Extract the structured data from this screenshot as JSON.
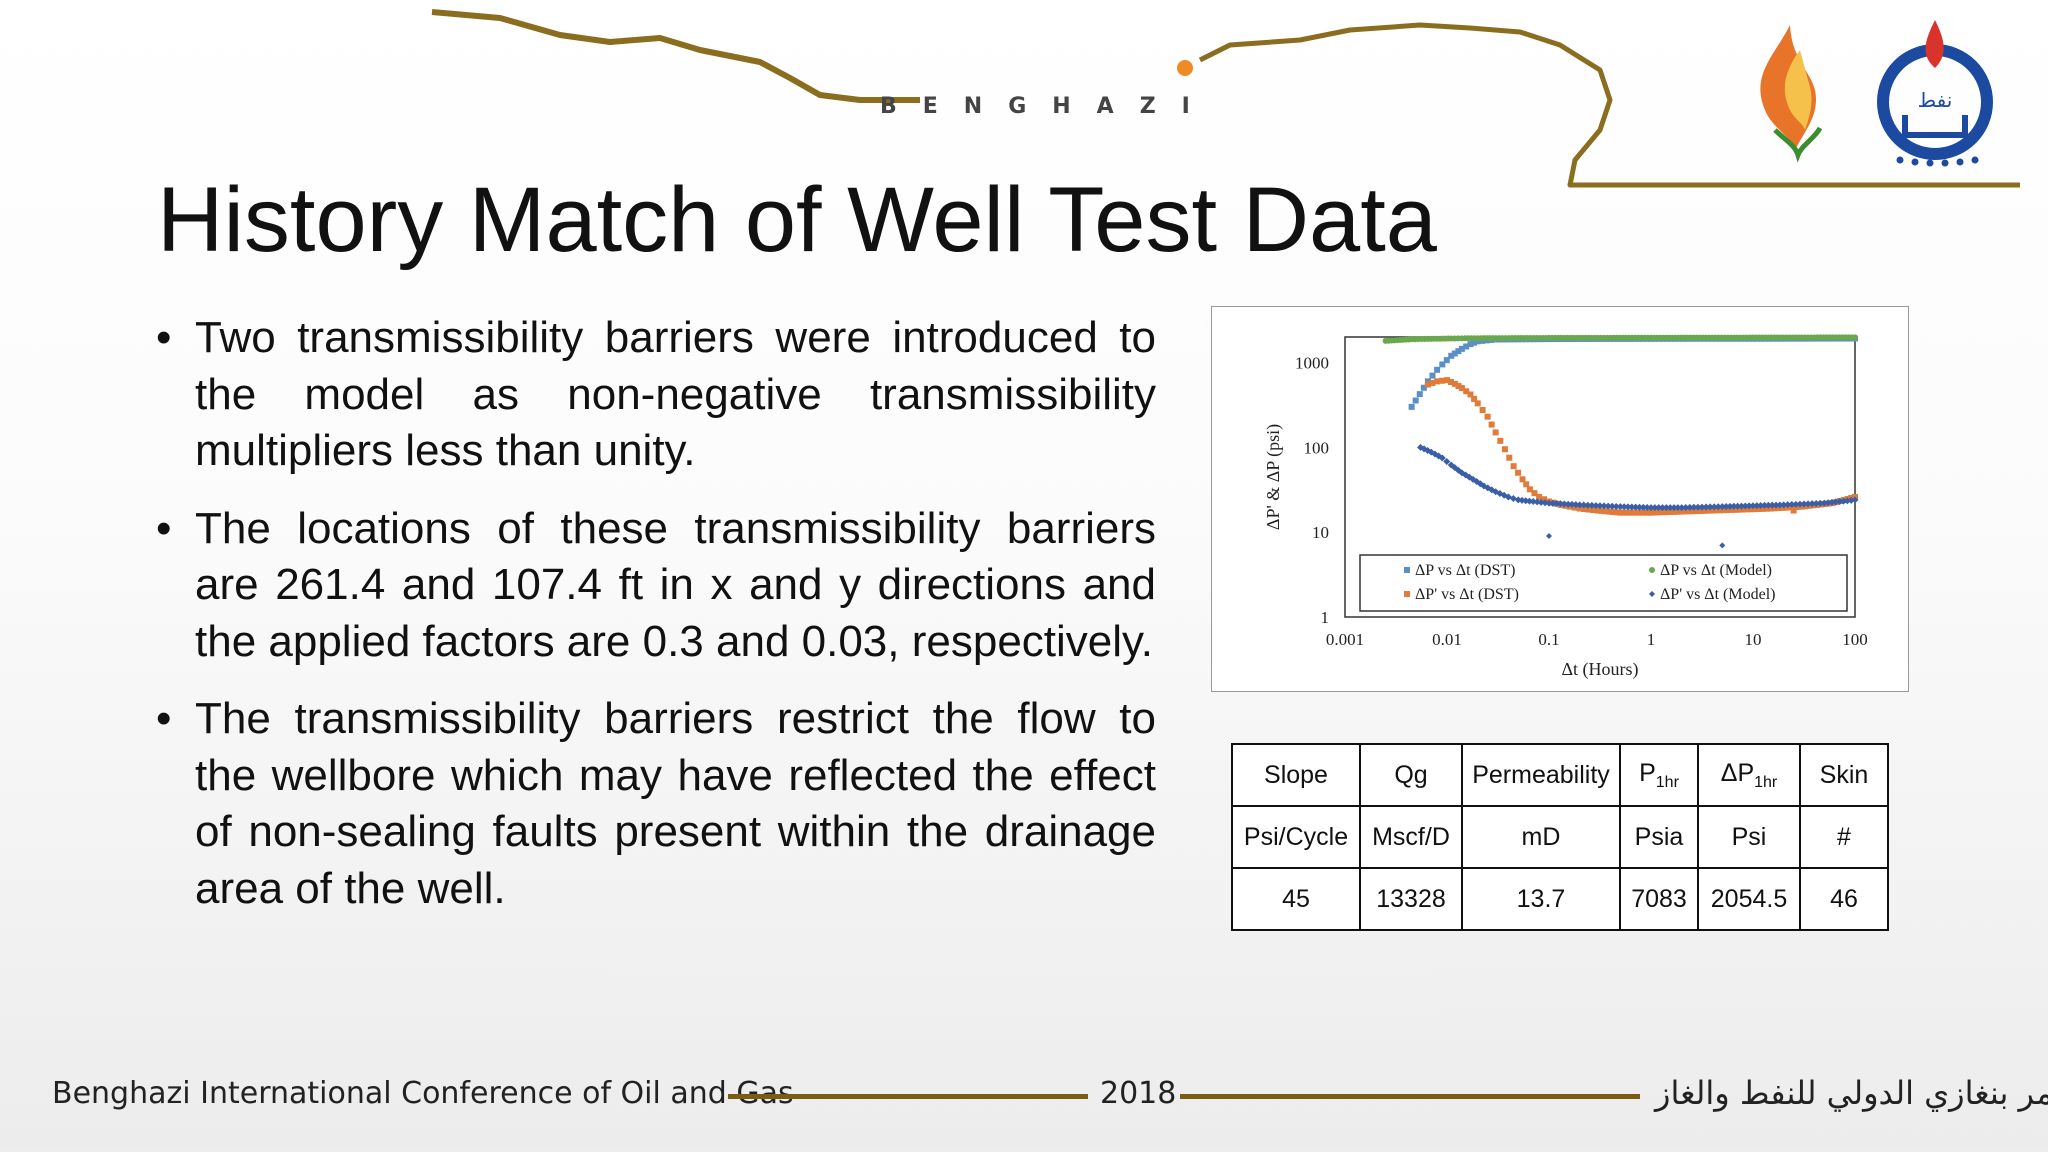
{
  "header": {
    "city_label": "BENGHAZI"
  },
  "slide": {
    "title": "History Match of Well Test Data",
    "bullets": [
      "Two transmissibility barriers were introduced to the model as non-negative transmissibility multipliers less than unity.",
      "The locations of these transmissibility barriers are 261.4 and 107.4 ft in x and y directions and the applied factors are 0.3 and 0.03, respectively.",
      "The transmissibility barriers restrict the flow to the wellbore which may have reflected the effect of non-sealing faults present within the drainage area of the well."
    ],
    "bullet_symbol": "•"
  },
  "chart_data": {
    "type": "scatter",
    "x_scale": "log",
    "y_scale": "log",
    "xlim": [
      0.001,
      100
    ],
    "ylim": [
      1,
      2000
    ],
    "xlabel": "Δt (Hours)",
    "ylabel": "ΔP' & ΔP (psi)",
    "x_ticks": [
      "0.001",
      "0.01",
      "0.1",
      "1",
      "10",
      "100"
    ],
    "y_ticks": [
      "1",
      "10",
      "100",
      "1000"
    ],
    "legend_position": "bottom-inside",
    "series": [
      {
        "name": "ΔP vs Δt (DST)",
        "marker": "square",
        "color": "#5b8fc8",
        "x": [
          0.0045,
          0.0065,
          0.008,
          0.009,
          0.011,
          0.014,
          0.017,
          0.02,
          0.03,
          0.05,
          0.1,
          0.3,
          1,
          3,
          10,
          30,
          100
        ],
        "y": [
          300,
          600,
          820,
          950,
          1200,
          1450,
          1650,
          1780,
          1870,
          1880,
          1890,
          1900,
          1905,
          1910,
          1910,
          1915,
          1920
        ]
      },
      {
        "name": "ΔP vs Δt (Model)",
        "marker": "circle",
        "color": "#6aa84f",
        "x": [
          0.0025,
          0.0045,
          0.0065,
          0.0085,
          0.011,
          0.015,
          0.02,
          0.03,
          0.05,
          0.1,
          0.3,
          1,
          3,
          10,
          30,
          100
        ],
        "y": [
          1800,
          1880,
          1900,
          1910,
          1920,
          1930,
          1935,
          1940,
          1945,
          1950,
          1955,
          1960,
          1965,
          1970,
          1975,
          1980
        ]
      },
      {
        "name": "ΔP' vs Δt (DST)",
        "marker": "square",
        "color": "#e07b39",
        "x": [
          0.0065,
          0.008,
          0.01,
          0.012,
          0.014,
          0.017,
          0.02,
          0.025,
          0.03,
          0.037,
          0.045,
          0.055,
          0.065,
          0.08,
          0.1,
          0.13,
          0.16,
          0.2,
          0.3,
          0.5,
          1,
          2,
          4,
          8,
          15,
          30,
          60,
          100
        ],
        "y": [
          550,
          600,
          620,
          560,
          500,
          420,
          330,
          230,
          150,
          95,
          60,
          42,
          32,
          26,
          23,
          21,
          20,
          19,
          18,
          17,
          17,
          17.5,
          18,
          18.5,
          19,
          20,
          22,
          26
        ]
      },
      {
        "name": "ΔP' vs Δt (Model)",
        "marker": "diamond",
        "color": "#3b5ea8",
        "x": [
          0.0055,
          0.007,
          0.009,
          0.011,
          0.014,
          0.018,
          0.023,
          0.03,
          0.04,
          0.05,
          0.07,
          0.1,
          0.2,
          0.5,
          1,
          2,
          5,
          10,
          20,
          50,
          100
        ],
        "y": [
          100,
          88,
          75,
          62,
          50,
          42,
          35,
          30,
          26,
          24,
          23,
          22,
          21,
          20,
          19.5,
          19.5,
          20,
          20.5,
          21,
          22,
          24
        ]
      }
    ],
    "outliers": [
      {
        "series": "ΔP' vs Δt (Model)",
        "x": 0.1,
        "y": 9
      },
      {
        "series": "ΔP' vs Δt (Model)",
        "x": 5,
        "y": 7
      },
      {
        "series": "ΔP' vs Δt (DST)",
        "x": 25,
        "y": 18
      }
    ]
  },
  "table": {
    "headers": [
      "Slope",
      "Qg",
      "Permeability",
      "P",
      "ΔP",
      "Skin"
    ],
    "header_subscripts": [
      "",
      "",
      "",
      "1hr",
      "1hr",
      ""
    ],
    "units": [
      "Psi/Cycle",
      "Mscf/D",
      "mD",
      "Psia",
      "Psi",
      "#"
    ],
    "values": [
      "45",
      "13328",
      "13.7",
      "7083",
      "2054.5",
      "46"
    ]
  },
  "footer": {
    "conference": "Benghazi International Conference of Oil and Gas",
    "year": "2018",
    "arabic": "مؤتمر بنغازي الدولي للنفط والغاز"
  },
  "logos": {
    "right_logo_text": "نفط"
  },
  "colors": {
    "banner_line": "#8a6d1f",
    "footer_rule": "#7a5d13",
    "flame_orange": "#e8742a",
    "logo_blue": "#1b4aa0",
    "logo_red": "#d9342b"
  }
}
